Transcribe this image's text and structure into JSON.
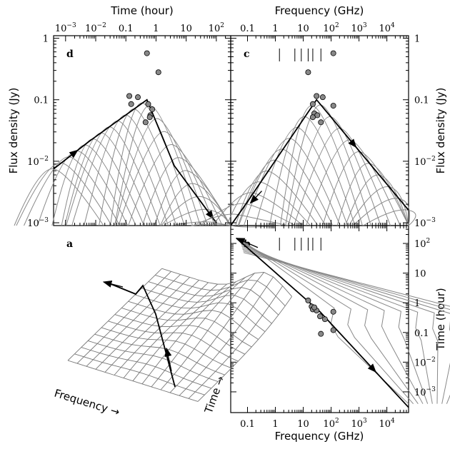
{
  "chart_data": [
    {
      "type": "line",
      "panel_label": "d",
      "x_axis_label": "Time (hour)",
      "x_scale": "log",
      "xlim": [
        0.0004,
        300
      ],
      "x_ticks": [
        "10^-3",
        "10^-2",
        "0.1",
        "1",
        "10",
        "10^2"
      ],
      "y_axis_label": "Flux density (Jy)",
      "y_scale": "log",
      "ylim": [
        0.0009,
        1.1
      ],
      "y_ticks": [
        "10^-3",
        "10^-2",
        "0.1",
        "1"
      ],
      "envelope": {
        "x": [
          0.0004,
          0.006,
          0.5,
          4,
          100
        ],
        "y": [
          0.0075,
          0.021,
          0.1,
          0.0085,
          0.001
        ]
      },
      "points": [
        {
          "x": 0.5,
          "y": 0.57
        },
        {
          "x": 1.2,
          "y": 0.28
        },
        {
          "x": 0.13,
          "y": 0.115
        },
        {
          "x": 0.25,
          "y": 0.11
        },
        {
          "x": 0.15,
          "y": 0.085
        },
        {
          "x": 0.55,
          "y": 0.085
        },
        {
          "x": 0.65,
          "y": 0.056
        },
        {
          "x": 0.62,
          "y": 0.052
        },
        {
          "x": 0.45,
          "y": 0.043
        },
        {
          "x": 0.75,
          "y": 0.07
        }
      ]
    },
    {
      "type": "line",
      "panel_label": "c",
      "x_axis_label": "Frequency (GHz)",
      "x_scale": "log",
      "xlim": [
        0.025,
        60000
      ],
      "x_ticks": [
        "0.1",
        "1",
        "10",
        "10^2",
        "10^3",
        "10^4"
      ],
      "y_axis_label": "Flux density (Jy)",
      "y_scale": "log",
      "ylim": [
        0.0009,
        1.1
      ],
      "y_ticks": [
        "10^-3",
        "10^-2",
        "0.1",
        "1"
      ],
      "band_markers_ghz": [
        1.4,
        5,
        8.5,
        15,
        22,
        43
      ],
      "envelope": {
        "x": [
          0.025,
          0.1,
          30,
          60000
        ],
        "y": [
          0.0009,
          0.0022,
          0.1,
          0.0016
        ]
      },
      "points": [
        {
          "x": 120,
          "y": 0.57
        },
        {
          "x": 15,
          "y": 0.28
        },
        {
          "x": 30,
          "y": 0.115
        },
        {
          "x": 50,
          "y": 0.11
        },
        {
          "x": 22,
          "y": 0.085
        },
        {
          "x": 120,
          "y": 0.08
        },
        {
          "x": 25,
          "y": 0.06
        },
        {
          "x": 32,
          "y": 0.056
        },
        {
          "x": 22,
          "y": 0.052
        },
        {
          "x": 43,
          "y": 0.043
        }
      ]
    },
    {
      "type": "line",
      "panel_label": "b",
      "x_axis_label": "Frequency (GHz)",
      "x_scale": "log",
      "xlim": [
        0.025,
        60000
      ],
      "x_ticks": [
        "0.1",
        "1",
        "10",
        "10^2",
        "10^3",
        "10^4"
      ],
      "y_axis_label": "Time (hour)",
      "y_scale": "log",
      "ylim": [
        0.0002,
        400
      ],
      "y_ticks": [
        "10^-3",
        "10^-2",
        "0.1",
        "1",
        "10",
        "10^2"
      ],
      "band_markers_ghz": [
        1.4,
        5,
        8.5,
        15,
        22,
        43
      ],
      "envelope": {
        "x": [
          0.04,
          40,
          60000
        ],
        "y": [
          150,
          0.5,
          0.0003
        ]
      },
      "points": [
        {
          "x": 15,
          "y": 1.2
        },
        {
          "x": 20,
          "y": 0.75
        },
        {
          "x": 22,
          "y": 0.6
        },
        {
          "x": 30,
          "y": 0.55
        },
        {
          "x": 25,
          "y": 0.7
        },
        {
          "x": 40,
          "y": 0.35
        },
        {
          "x": 60,
          "y": 0.28
        },
        {
          "x": 120,
          "y": 0.5
        },
        {
          "x": 120,
          "y": 0.12
        },
        {
          "x": 43,
          "y": 0.09
        }
      ]
    },
    {
      "type": "surface",
      "panel_label": "a",
      "x_axis_label": "Frequency",
      "y_axis_label": "Time"
    }
  ]
}
